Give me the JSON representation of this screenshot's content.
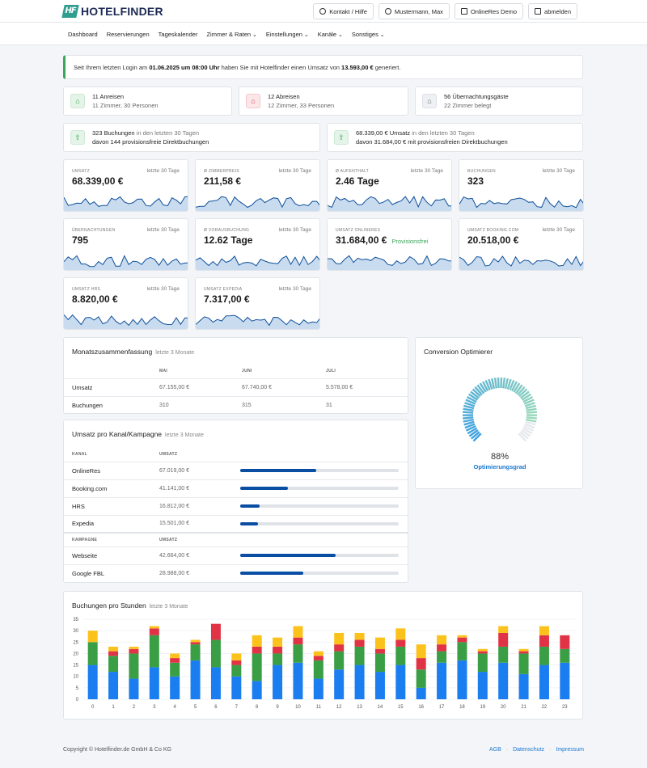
{
  "app": {
    "name": "HOTELFINDER"
  },
  "header": {
    "buttons": [
      {
        "label": "Kontakt / Hilfe",
        "icon": "help-circle-icon"
      },
      {
        "label": "Mustermann, Max",
        "icon": "user-icon"
      },
      {
        "label": "OnlineRes Demo",
        "icon": "building-icon"
      },
      {
        "label": "abmelden",
        "icon": "logout-icon"
      }
    ]
  },
  "nav": {
    "items": [
      {
        "label": "Dashboard",
        "dropdown": false
      },
      {
        "label": "Reservierungen",
        "dropdown": false
      },
      {
        "label": "Tageskalender",
        "dropdown": false
      },
      {
        "label": "Zimmer & Raten",
        "dropdown": true
      },
      {
        "label": "Einstellungen",
        "dropdown": true
      },
      {
        "label": "Kanäle",
        "dropdown": true
      },
      {
        "label": "Sonstiges",
        "dropdown": true
      }
    ]
  },
  "notice": {
    "prefix": "Seit Ihrem letzten Login am ",
    "date": "01.06.2025 um 08:00 Uhr",
    "middle": " haben Sie mit Hotelfinder einen Umsatz von ",
    "amount": "13.593,00 €",
    "suffix": " generiert."
  },
  "arrivals": {
    "title": "11 Anreisen",
    "sub": "11 Zimmer, 30 Personen"
  },
  "departures": {
    "title": "12 Abreisen",
    "sub": "12 Zimmer, 33 Personen"
  },
  "guests": {
    "title": "56 Übernachtungsgäste",
    "sub": "22 Zimmer belegt"
  },
  "bookings_summary": {
    "count": "323 Buchungen",
    "period": " in den letzten 30 Tagen",
    "sub": "davon 144 provisionsfreie Direktbuchungen"
  },
  "revenue_summary": {
    "amount": "68.339,00 € Umsatz",
    "period": " in den letzten 30 Tagen",
    "sub": "davon 31.684,00 € mit provisionsfreien Direktbuchungen"
  },
  "kpis": [
    {
      "label": "Umsatz",
      "period": "letzte 30 Tage",
      "value": "68.339,00 €",
      "extra": ""
    },
    {
      "label": "Ø Zimmerpreis",
      "period": "letzte 30 Tage",
      "value": "211,58 €",
      "extra": ""
    },
    {
      "label": "Ø Aufenthalt",
      "period": "letzte 30 Tage",
      "value": "2.46 Tage",
      "extra": ""
    },
    {
      "label": "Buchungen",
      "period": "letzte 30 Tage",
      "value": "323",
      "extra": ""
    },
    {
      "label": "Übernachtungen",
      "period": "letzte 30 Tage",
      "value": "795",
      "extra": ""
    },
    {
      "label": "Ø Vorausbuchung",
      "period": "letzte 30 Tage",
      "value": "12.62 Tage",
      "extra": ""
    },
    {
      "label": "Umsatz OnlineRes",
      "period": "",
      "value": "31.684,00 €",
      "extra": "Provisionsfrei"
    },
    {
      "label": "Umsatz Booking.com",
      "period": "letzte 30 Tage",
      "value": "20.518,00 €",
      "extra": ""
    },
    {
      "label": "Umsatz HRS",
      "period": "letzte 30 Tage",
      "value": "8.820,00 €",
      "extra": ""
    },
    {
      "label": "Umsatz Expedia",
      "period": "letzte 30 Tage",
      "value": "7.317,00 €",
      "extra": ""
    }
  ],
  "monthly": {
    "title": "Monatszusammenfassung",
    "sub": "letzte 3 Monate",
    "columns": [
      "",
      "Mai",
      "Juni",
      "Juli"
    ],
    "rows": [
      {
        "label": "Umsatz",
        "values": [
          "67.155,00 €",
          "67.740,00 €",
          "5.578,00 €"
        ]
      },
      {
        "label": "Buchungen",
        "values": [
          "310",
          "315",
          "31"
        ]
      }
    ]
  },
  "channels": {
    "title": "Umsatz pro Kanal/Kampagne",
    "sub": "letzte 3 Monate",
    "channel_header": [
      "Kanal",
      "Umsatz"
    ],
    "channel_rows": [
      {
        "label": "OnlineRes",
        "value": "67.019,00 €",
        "share": 0.48
      },
      {
        "label": "Booking.com",
        "value": "41.141,00 €",
        "share": 0.3
      },
      {
        "label": "HRS",
        "value": "16.812,00 €",
        "share": 0.12
      },
      {
        "label": "Expedia",
        "value": "15.501,00 €",
        "share": 0.11
      }
    ],
    "campaign_header": [
      "Kampagne",
      "Umsatz"
    ],
    "campaign_rows": [
      {
        "label": "Webseite",
        "value": "42.664,00 €",
        "share": 0.6
      },
      {
        "label": "Google FBL",
        "value": "28.988,00 €",
        "share": 0.4
      }
    ]
  },
  "conversion": {
    "title": "Conversion Optimierer",
    "percent": "88%",
    "value": 0.88,
    "label": "Optimierungsgrad"
  },
  "chart_data": {
    "type": "bar",
    "title": "Buchungen pro Stunden",
    "subtitle": "letzte 3 Monate",
    "stacked": true,
    "grid": true,
    "ylim": [
      0,
      35
    ],
    "yticks": [
      0,
      5,
      10,
      15,
      20,
      25,
      30,
      35
    ],
    "categories": [
      "0",
      "1",
      "2",
      "3",
      "4",
      "5",
      "6",
      "7",
      "8",
      "9",
      "10",
      "11",
      "12",
      "13",
      "14",
      "15",
      "16",
      "17",
      "18",
      "19",
      "20",
      "21",
      "22",
      "23"
    ],
    "series": [
      {
        "color": "#1a7df0",
        "values": [
          15,
          12,
          9,
          14,
          10,
          17,
          14,
          10,
          8,
          15,
          16,
          9,
          13,
          15,
          12,
          15,
          5,
          16,
          17,
          12,
          16,
          11,
          15,
          16
        ]
      },
      {
        "color": "#3a9e45",
        "values": [
          10,
          7,
          11,
          14,
          6,
          7,
          12,
          5,
          12,
          5,
          8,
          8,
          8,
          8,
          8,
          8,
          8,
          5,
          8,
          8,
          7,
          9,
          8,
          6
        ]
      },
      {
        "color": "#e03345",
        "values": [
          0,
          2,
          2,
          3,
          2,
          1,
          7,
          2,
          3,
          3,
          3,
          2,
          3,
          3,
          2,
          3,
          5,
          3,
          2,
          1,
          6,
          1,
          5,
          6
        ]
      },
      {
        "color": "#fbc21c",
        "values": [
          5,
          2,
          1,
          1,
          2,
          1,
          0,
          3,
          5,
          4,
          5,
          2,
          5,
          3,
          5,
          5,
          6,
          4,
          1,
          1,
          3,
          1,
          4,
          0
        ]
      }
    ]
  },
  "footer": {
    "copyright": "Copyright © Hotelfinder.de GmbH & Co KG",
    "links": [
      "AGB",
      "Datenschutz",
      "Impressum"
    ]
  }
}
